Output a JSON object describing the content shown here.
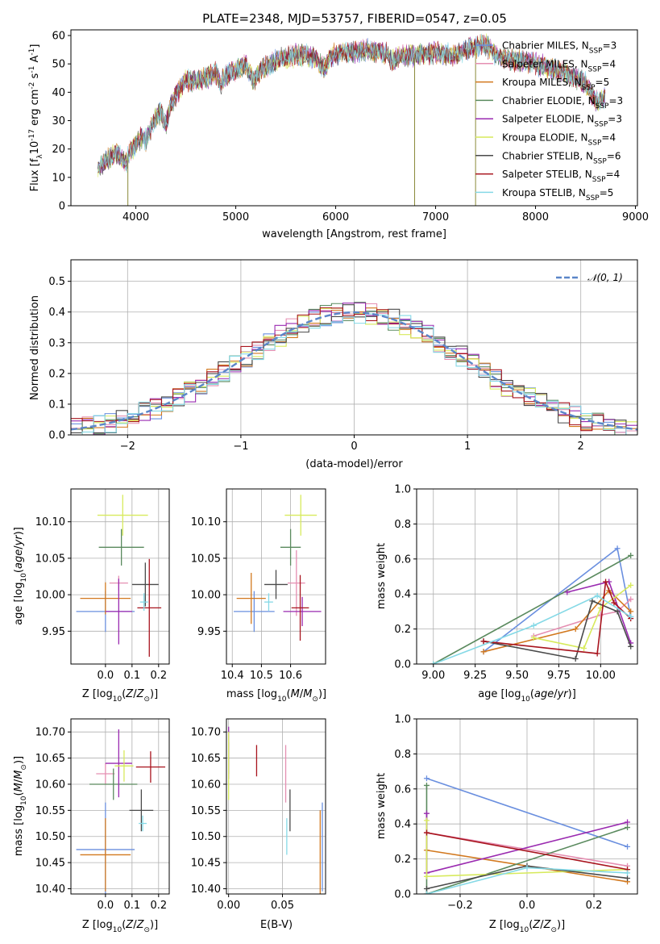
{
  "colors": {
    "Chabrier MILES": "#6a8fdf",
    "Salpeter MILES": "#e58fb2",
    "Kroupa MILES": "#d2781e",
    "Chabrier ELODIE": "#5a8a5e",
    "Salpeter ELODIE": "#9a2ab0",
    "Kroupa ELODIE": "#d7ea5c",
    "Chabrier STELIB": "#4a4a4a",
    "Salpeter STELIB": "#a8141e",
    "Kroupa STELIB": "#85d9e6"
  },
  "legend": [
    {
      "model": "Chabrier MILES",
      "label": "Chabrier MILES, N",
      "nssp": "=3"
    },
    {
      "model": "Salpeter MILES",
      "label": "Salpeter MILES, N",
      "nssp": "=4"
    },
    {
      "model": "Kroupa MILES",
      "label": "Kroupa MILES, N",
      "nssp": "=5"
    },
    {
      "model": "Chabrier ELODIE",
      "label": "Chabrier ELODIE, N",
      "nssp": "=3"
    },
    {
      "model": "Salpeter ELODIE",
      "label": "Salpeter ELODIE, N",
      "nssp": "=3"
    },
    {
      "model": "Kroupa ELODIE",
      "label": "Kroupa ELODIE, N",
      "nssp": "=4"
    },
    {
      "model": "Chabrier STELIB",
      "label": "Chabrier STELIB, N",
      "nssp": "=6"
    },
    {
      "model": "Salpeter STELIB",
      "label": "Salpeter STELIB, N",
      "nssp": "=4"
    },
    {
      "model": "Kroupa STELIB",
      "label": "Kroupa STELIB, N",
      "nssp": "=5"
    }
  ],
  "legend_sub": "SSP",
  "chart_data": [
    {
      "id": "spectrum",
      "type": "line",
      "title": "PLATE=2348, MJD=53757, FIBERID=0547, z=0.05",
      "xlabel": "wavelength [Angstrom, rest frame]",
      "ylabel_parts": [
        "Flux [f",
        "λ",
        "10",
        "-17",
        " erg cm",
        "-2",
        " s",
        "-1",
        " A",
        "-1",
        "]"
      ],
      "xlim": [
        3350,
        9020
      ],
      "ylim": [
        0,
        62
      ],
      "xticks": [
        4000,
        5000,
        6000,
        7000,
        8000,
        9000
      ],
      "yticks": [
        0,
        10,
        20,
        30,
        40,
        50,
        60
      ],
      "continuum": [
        [
          3620,
          13
        ],
        [
          3700,
          16
        ],
        [
          3800,
          19
        ],
        [
          3850,
          17
        ],
        [
          3900,
          15
        ],
        [
          3950,
          20
        ],
        [
          4000,
          21
        ],
        [
          4050,
          24
        ],
        [
          4100,
          23
        ],
        [
          4150,
          27
        ],
        [
          4200,
          31
        ],
        [
          4250,
          33
        ],
        [
          4300,
          28
        ],
        [
          4350,
          36
        ],
        [
          4400,
          39
        ],
        [
          4450,
          42
        ],
        [
          4500,
          44
        ],
        [
          4600,
          44
        ],
        [
          4700,
          45
        ],
        [
          4800,
          47
        ],
        [
          4850,
          43
        ],
        [
          4900,
          46
        ],
        [
          5000,
          48
        ],
        [
          5100,
          50
        ],
        [
          5175,
          44
        ],
        [
          5250,
          48
        ],
        [
          5300,
          49
        ],
        [
          5400,
          51
        ],
        [
          5500,
          52
        ],
        [
          5600,
          53
        ],
        [
          5700,
          53
        ],
        [
          5800,
          52
        ],
        [
          5890,
          48
        ],
        [
          5950,
          53
        ],
        [
          6100,
          54
        ],
        [
          6200,
          54
        ],
        [
          6300,
          55
        ],
        [
          6400,
          54
        ],
        [
          6500,
          54
        ],
        [
          6562,
          51
        ],
        [
          6650,
          53
        ],
        [
          6800,
          53
        ],
        [
          7000,
          54
        ],
        [
          7200,
          53
        ],
        [
          7300,
          55
        ],
        [
          7400,
          56
        ],
        [
          7500,
          57
        ],
        [
          7600,
          53
        ],
        [
          7700,
          52
        ],
        [
          7800,
          51
        ],
        [
          7900,
          51
        ],
        [
          8000,
          50
        ],
        [
          8100,
          49
        ],
        [
          8200,
          48
        ],
        [
          8300,
          47
        ],
        [
          8400,
          45
        ],
        [
          8500,
          43
        ],
        [
          8600,
          37
        ],
        [
          8700,
          38
        ]
      ],
      "spikes": [
        {
          "x": 3920,
          "y": 0
        },
        {
          "x": 6790,
          "y": 0
        },
        {
          "x": 7400,
          "y": 0
        }
      ],
      "legend_position": "right"
    },
    {
      "id": "residuals",
      "type": "histogram",
      "xlabel": "(data-model)/error",
      "ylabel": "Normed distribution",
      "xlim": [
        -2.5,
        2.5
      ],
      "ylim": [
        0,
        0.57
      ],
      "xticks": [
        -2,
        -1,
        0,
        1,
        2
      ],
      "xtick_labels": [
        "−2",
        "−1",
        "0",
        "1",
        "2"
      ],
      "yticks": [
        0.0,
        0.1,
        0.2,
        0.3,
        0.4,
        0.5
      ],
      "ytick_labels": [
        "0.0",
        "0.1",
        "0.2",
        "0.3",
        "0.4",
        "0.5"
      ],
      "bin_width": 0.1,
      "reference": {
        "label": "𝒩(0, 1)",
        "mean": 0,
        "sigma": 1,
        "style": "dashed",
        "color": "#5b86c8"
      },
      "legend_position": "top-right"
    },
    {
      "id": "age_vs_Z",
      "type": "errorbar",
      "xlabel": "Z [log",
      "ylabel": "age  [log",
      "xlim": [
        -0.13,
        0.24
      ],
      "ylim": [
        9.905,
        10.145
      ],
      "xticks": [
        0.0,
        0.1,
        0.2
      ],
      "xtick_labels": [
        "0.0",
        "0.1",
        "0.2"
      ],
      "yticks": [
        9.95,
        10.0,
        10.05,
        10.1
      ],
      "ytick_labels": [
        "9.95",
        "10.00",
        "10.05",
        "10.10"
      ],
      "points": [
        {
          "model": "Chabrier MILES",
          "x": 0.0,
          "xerr": 0.11,
          "y": 9.977,
          "yerr": 0.028
        },
        {
          "model": "Salpeter MILES",
          "x": 0.05,
          "xerr": 0.035,
          "y": 10.016,
          "yerr": 0.01
        },
        {
          "model": "Kroupa MILES",
          "x": 0.0,
          "xerr": 0.095,
          "y": 9.995,
          "yerr": 0.022
        },
        {
          "model": "Chabrier ELODIE",
          "x": 0.06,
          "xerr": 0.085,
          "y": 10.065,
          "yerr": 0.025
        },
        {
          "model": "Salpeter ELODIE",
          "x": 0.05,
          "xerr": 0.05,
          "y": 9.977,
          "yerr": 0.045
        },
        {
          "model": "Kroupa ELODIE",
          "x": 0.065,
          "xerr": 0.095,
          "y": 10.109,
          "yerr": 0.028
        },
        {
          "model": "Chabrier STELIB",
          "x": 0.15,
          "xerr": 0.05,
          "y": 10.014,
          "yerr": 0.03
        },
        {
          "model": "Salpeter STELIB",
          "x": 0.165,
          "xerr": 0.045,
          "y": 9.982,
          "yerr": 0.067
        },
        {
          "model": "Kroupa STELIB",
          "x": 0.145,
          "xerr": 0.015,
          "y": 9.99,
          "yerr": 0.012
        }
      ]
    },
    {
      "id": "age_vs_mass",
      "type": "errorbar",
      "xlabel": "mass [log",
      "xlim": [
        10.38,
        10.72
      ],
      "ylim": [
        9.905,
        10.145
      ],
      "xticks": [
        10.4,
        10.5,
        10.6
      ],
      "xtick_labels": [
        "10.4",
        "10.5",
        "10.6"
      ],
      "yticks": [
        9.95,
        10.0,
        10.05,
        10.1
      ],
      "ytick_labels": [
        "9.95",
        "10.00",
        "10.05",
        "10.10"
      ],
      "points": [
        {
          "model": "Chabrier MILES",
          "x": 10.475,
          "xerr": 0.07,
          "y": 9.977,
          "yerr": 0.028
        },
        {
          "model": "Salpeter MILES",
          "x": 10.62,
          "xerr": 0.03,
          "y": 10.016,
          "yerr": 0.045
        },
        {
          "model": "Kroupa MILES",
          "x": 10.465,
          "xerr": 0.05,
          "y": 9.995,
          "yerr": 0.035
        },
        {
          "model": "Chabrier ELODIE",
          "x": 10.6,
          "xerr": 0.035,
          "y": 10.065,
          "yerr": 0.025
        },
        {
          "model": "Salpeter ELODIE",
          "x": 10.64,
          "xerr": 0.065,
          "y": 9.977,
          "yerr": 0.02
        },
        {
          "model": "Kroupa ELODIE",
          "x": 10.635,
          "xerr": 0.055,
          "y": 10.109,
          "yerr": 0.028
        },
        {
          "model": "Chabrier STELIB",
          "x": 10.55,
          "xerr": 0.04,
          "y": 10.014,
          "yerr": 0.02
        },
        {
          "model": "Salpeter STELIB",
          "x": 10.633,
          "xerr": 0.03,
          "y": 9.982,
          "yerr": 0.045
        },
        {
          "model": "Kroupa STELIB",
          "x": 10.525,
          "xerr": 0.015,
          "y": 9.99,
          "yerr": 0.012
        }
      ]
    },
    {
      "id": "weight_vs_age",
      "type": "line",
      "xlabel": "age  [log",
      "ylabel": "mass weight",
      "xlim": [
        8.9,
        10.22
      ],
      "ylim": [
        0,
        1.0
      ],
      "xticks": [
        9.0,
        9.25,
        9.5,
        9.75,
        10.0
      ],
      "xtick_labels": [
        "9.00",
        "9.25",
        "9.50",
        "9.75",
        "10.00"
      ],
      "yticks": [
        0.0,
        0.2,
        0.4,
        0.6,
        0.8,
        1.0
      ],
      "ytick_labels": [
        "0.0",
        "0.2",
        "0.4",
        "0.6",
        "0.8",
        "1.0"
      ],
      "series": [
        {
          "model": "Chabrier MILES",
          "x": [
            9.3,
            10.1,
            10.18
          ],
          "y": [
            0.07,
            0.66,
            0.27
          ]
        },
        {
          "model": "Salpeter MILES",
          "x": [
            9.6,
            10.0,
            10.1,
            10.18
          ],
          "y": [
            0.16,
            0.28,
            0.3,
            0.37
          ]
        },
        {
          "model": "Kroupa MILES",
          "x": [
            9.3,
            9.85,
            10.05,
            10.18
          ],
          "y": [
            0.07,
            0.2,
            0.42,
            0.3
          ]
        },
        {
          "model": "Chabrier ELODIE",
          "x": [
            9.0,
            10.18
          ],
          "y": [
            0.0,
            0.62
          ]
        },
        {
          "model": "Salpeter ELODIE",
          "x": [
            9.8,
            10.05,
            10.18
          ],
          "y": [
            0.41,
            0.47,
            0.12
          ]
        },
        {
          "model": "Kroupa ELODIE",
          "x": [
            9.6,
            9.9,
            10.0,
            10.18
          ],
          "y": [
            0.15,
            0.09,
            0.32,
            0.45
          ]
        },
        {
          "model": "Chabrier STELIB",
          "x": [
            9.3,
            9.85,
            9.95,
            10.1,
            10.18
          ],
          "y": [
            0.13,
            0.03,
            0.36,
            0.3,
            0.1
          ]
        },
        {
          "model": "Salpeter STELIB",
          "x": [
            9.3,
            9.98,
            10.03,
            10.08,
            10.18
          ],
          "y": [
            0.13,
            0.06,
            0.47,
            0.35,
            0.26
          ]
        },
        {
          "model": "Kroupa STELIB",
          "x": [
            9.0,
            9.6,
            9.98,
            10.18
          ],
          "y": [
            0.0,
            0.22,
            0.39,
            0.27
          ]
        }
      ]
    },
    {
      "id": "mass_vs_Z",
      "type": "errorbar",
      "xlabel": "Z [log",
      "ylabel": "mass [log",
      "xlim": [
        -0.13,
        0.24
      ],
      "ylim": [
        10.39,
        10.725
      ],
      "xticks": [
        0.0,
        0.1,
        0.2
      ],
      "xtick_labels": [
        "0.0",
        "0.1",
        "0.2"
      ],
      "yticks": [
        10.4,
        10.45,
        10.5,
        10.55,
        10.6,
        10.65,
        10.7
      ],
      "ytick_labels": [
        "10.40",
        "10.45",
        "10.50",
        "10.55",
        "10.60",
        "10.65",
        "10.70"
      ],
      "points": [
        {
          "model": "Chabrier MILES",
          "x": 0.0,
          "xerr": 0.11,
          "y": 10.475,
          "yerr": 0.09
        },
        {
          "model": "Salpeter MILES",
          "x": 0.0,
          "xerr": 0.035,
          "y": 10.62,
          "yerr": 0.02
        },
        {
          "model": "Kroupa MILES",
          "x": 0.0,
          "xerr": 0.095,
          "y": 10.465,
          "yerr": 0.07
        },
        {
          "model": "Chabrier ELODIE",
          "x": 0.03,
          "xerr": 0.09,
          "y": 10.6,
          "yerr": 0.03
        },
        {
          "model": "Salpeter ELODIE",
          "x": 0.05,
          "xerr": 0.05,
          "y": 10.64,
          "yerr": 0.065
        },
        {
          "model": "Kroupa ELODIE",
          "x": 0.07,
          "xerr": 0.035,
          "y": 10.635,
          "yerr": 0.03
        },
        {
          "model": "Chabrier STELIB",
          "x": 0.135,
          "xerr": 0.045,
          "y": 10.55,
          "yerr": 0.04
        },
        {
          "model": "Salpeter STELIB",
          "x": 0.17,
          "xerr": 0.055,
          "y": 10.633,
          "yerr": 0.03
        },
        {
          "model": "Kroupa STELIB",
          "x": 0.14,
          "xerr": 0.015,
          "y": 10.525,
          "yerr": 0.015
        }
      ]
    },
    {
      "id": "mass_vs_ebv",
      "type": "errorbar",
      "xlabel": "E(B-V)",
      "xlim": [
        -0.002,
        0.09
      ],
      "ylim": [
        10.39,
        10.725
      ],
      "xticks": [
        0.0,
        0.05
      ],
      "xtick_labels": [
        "0.00",
        "0.05"
      ],
      "yticks": [
        10.4,
        10.45,
        10.5,
        10.55,
        10.6,
        10.65,
        10.7
      ],
      "ytick_labels": [
        "10.40",
        "10.45",
        "10.50",
        "10.55",
        "10.60",
        "10.65",
        "10.70"
      ],
      "points": [
        {
          "model": "Chabrier MILES",
          "x": 0.087,
          "xerr": 0,
          "y": 10.48,
          "yerr": 0.085
        },
        {
          "model": "Salpeter MILES",
          "x": 0.053,
          "xerr": 0,
          "y": 10.62,
          "yerr": 0.055
        },
        {
          "model": "Kroupa MILES",
          "x": 0.085,
          "xerr": 0,
          "y": 10.465,
          "yerr": 0.085
        },
        {
          "model": "Chabrier ELODIE",
          "x": 0.0,
          "xerr": 0,
          "y": 10.65,
          "yerr": 0.03
        },
        {
          "model": "Salpeter ELODIE",
          "x": 0.0,
          "xerr": 0,
          "y": 10.66,
          "yerr": 0.05
        },
        {
          "model": "Kroupa ELODIE",
          "x": 0.0,
          "xerr": 0,
          "y": 10.635,
          "yerr": 0.065
        },
        {
          "model": "Chabrier STELIB",
          "x": 0.057,
          "xerr": 0,
          "y": 10.55,
          "yerr": 0.04
        },
        {
          "model": "Salpeter STELIB",
          "x": 0.026,
          "xerr": 0,
          "y": 10.645,
          "yerr": 0.03
        },
        {
          "model": "Kroupa STELIB",
          "x": 0.054,
          "xerr": 0,
          "y": 10.5,
          "yerr": 0.035
        }
      ]
    },
    {
      "id": "weight_vs_Z",
      "type": "line",
      "xlabel": "Z [log",
      "ylabel": "mass weight",
      "xlim": [
        -0.33,
        0.33
      ],
      "ylim": [
        0,
        1.0
      ],
      "xticks": [
        -0.2,
        0.0,
        0.2
      ],
      "xtick_labels": [
        "−0.2",
        "0.0",
        "0.2"
      ],
      "yticks": [
        0.0,
        0.2,
        0.4,
        0.6,
        0.8,
        1.0
      ],
      "ytick_labels": [
        "0.0",
        "0.2",
        "0.4",
        "0.6",
        "0.8",
        "1.0"
      ],
      "series": [
        {
          "model": "Chabrier MILES",
          "x": [
            -0.3,
            0.3
          ],
          "y": [
            0.66,
            0.27
          ]
        },
        {
          "model": "Salpeter MILES",
          "x": [
            -0.3,
            0.3
          ],
          "y": [
            0.35,
            0.16
          ]
        },
        {
          "model": "Kroupa MILES",
          "x": [
            -0.3,
            0.3
          ],
          "y": [
            0.25,
            0.07
          ]
        },
        {
          "model": "Chabrier ELODIE",
          "x": [
            -0.3,
            -0.3,
            0.3
          ],
          "y": [
            0.62,
            0.0,
            0.38
          ]
        },
        {
          "model": "Salpeter ELODIE",
          "x": [
            -0.3,
            -0.3,
            0.3
          ],
          "y": [
            0.46,
            0.12,
            0.41
          ]
        },
        {
          "model": "Kroupa ELODIE",
          "x": [
            -0.3,
            -0.3,
            0.3
          ],
          "y": [
            0.42,
            0.1,
            0.14
          ]
        },
        {
          "model": "Chabrier STELIB",
          "x": [
            -0.3,
            0.0,
            0.3
          ],
          "y": [
            0.03,
            0.16,
            0.09
          ]
        },
        {
          "model": "Salpeter STELIB",
          "x": [
            -0.3,
            0.3
          ],
          "y": [
            0.35,
            0.14
          ]
        },
        {
          "model": "Kroupa STELIB",
          "x": [
            -0.3,
            0.0,
            0.3
          ],
          "y": [
            0.0,
            0.15,
            0.12
          ]
        }
      ]
    }
  ]
}
